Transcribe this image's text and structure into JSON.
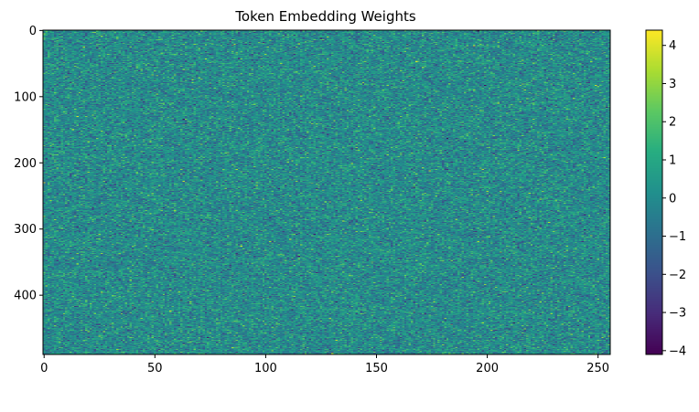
{
  "chart_data": {
    "type": "heatmap",
    "title": "Token Embedding Weights",
    "rows": 490,
    "cols": 256,
    "x_range": [
      -0.5,
      255.5
    ],
    "y_range": [
      489.5,
      -0.5
    ],
    "x_ticks": [
      0,
      50,
      100,
      150,
      200,
      250
    ],
    "x_tick_labels": [
      "0",
      "50",
      "100",
      "150",
      "200",
      "250"
    ],
    "y_ticks": [
      0,
      100,
      200,
      300,
      400
    ],
    "y_tick_labels": [
      "0",
      "100",
      "200",
      "300",
      "400"
    ],
    "colormap": "viridis",
    "colorbar": {
      "range": [
        -4.1,
        4.4
      ],
      "ticks": [
        -4,
        -3,
        -2,
        -1,
        0,
        1,
        2,
        3,
        4
      ],
      "tick_labels": [
        "−4",
        "−3",
        "−2",
        "−1",
        "0",
        "1",
        "2",
        "3",
        "4"
      ]
    },
    "value_distribution": {
      "kind": "normal",
      "mean": 0,
      "std": 1
    },
    "grid": false
  }
}
